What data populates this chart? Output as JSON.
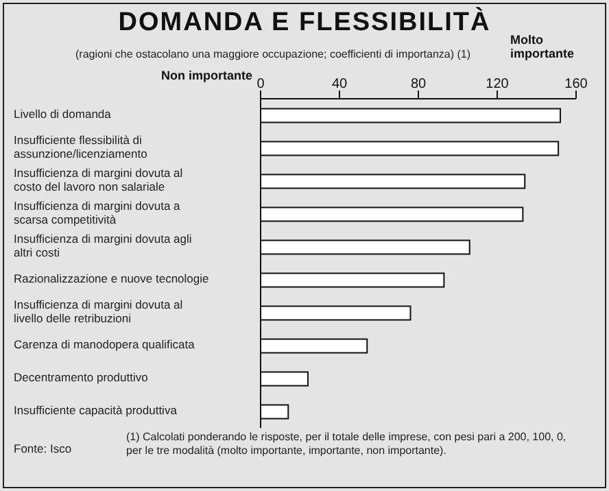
{
  "chart_data": {
    "type": "bar",
    "orientation": "horizontal",
    "title": "DOMANDA E FLESSIBILITÀ",
    "subtitle": "(ragioni che ostacolano una maggiore occupazione; coefficienti di importanza) (1)",
    "categories": [
      "Livello di domanda",
      "Insufficiente flessibilità di assunzione/licenziamento",
      "Insufficienza di margini dovuta al costo del lavoro non salariale",
      "Insufficienza di margini dovuta a scarsa competitività",
      "Insufficienza di margini dovuta agli altri costi",
      "Razionalizzazione e nuove tecnologie",
      "Insufficienza di margini dovuta al livello delle retribuzioni",
      "Carenza di manodopera qualificata",
      "Decentramento produttivo",
      "Insufficiente capacità produttiva"
    ],
    "values": [
      152,
      151,
      134,
      133,
      106,
      93,
      76,
      54,
      24,
      14
    ],
    "color": "#ffffff",
    "xlim": [
      0,
      160
    ],
    "xticks": [
      0,
      40,
      80,
      120,
      160
    ],
    "grid": false,
    "legend": false,
    "annotations": [
      "Non importante",
      "Molto importante",
      "Fonte: Isco",
      "(1) Calcolati ponderando le risposte, per il totale delle imprese, con pesi pari a 200, 100, 0, per le tre modalità (molto importante, importante, non importante)."
    ]
  }
}
